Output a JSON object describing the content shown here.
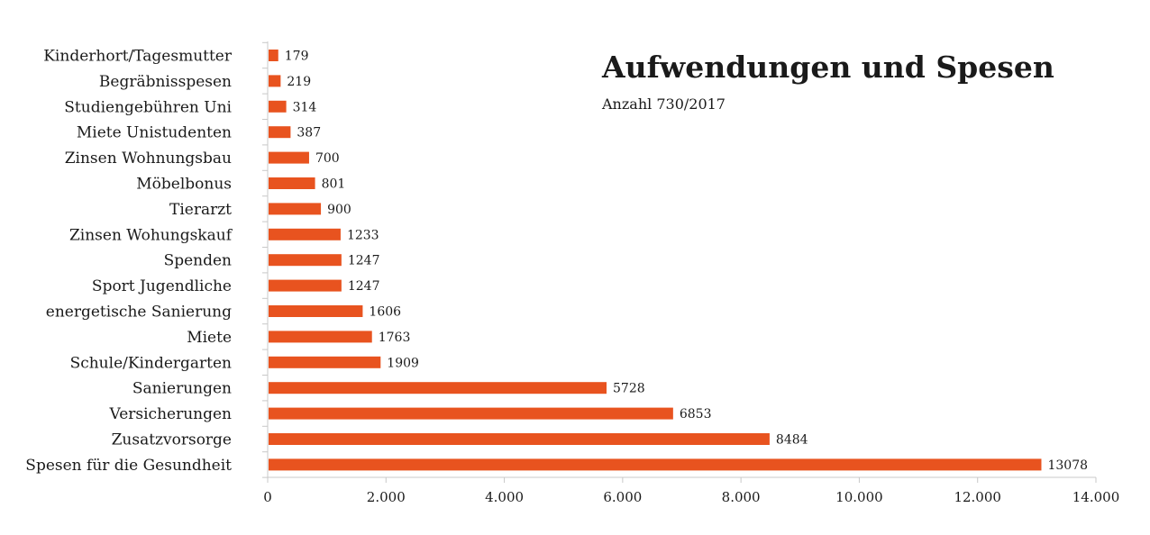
{
  "chart_data": {
    "type": "bar",
    "orientation": "horizontal",
    "title": "Aufwendungen und Spesen",
    "subtitle": "Anzahl 730/2017",
    "categories": [
      "Kinderhort/Tagesmutter",
      "Begräbnisspesen",
      "Studiengebühren Uni",
      "Miete Unistudenten",
      "Zinsen Wohnungsbau",
      "Möbelbonus",
      "Tierarzt",
      "Zinsen Wohungskauf",
      "Spenden",
      "Sport Jugendliche",
      "energetische Sanierung",
      "Miete",
      "Schule/Kindergarten",
      "Sanierungen",
      "Versicherungen",
      "Zusatzvorsorge",
      "Spesen für die Gesundheit"
    ],
    "values": [
      179,
      219,
      314,
      387,
      700,
      801,
      900,
      1233,
      1247,
      1247,
      1606,
      1763,
      1909,
      5728,
      6853,
      8484,
      13078
    ],
    "xlim": [
      0,
      14000
    ],
    "xticks": [
      0,
      2000,
      4000,
      6000,
      8000,
      10000,
      12000,
      14000
    ],
    "xtick_labels": [
      "0",
      "2.000",
      "4.000",
      "6.000",
      "8.000",
      "10.000",
      "12.000",
      "14.000"
    ],
    "grid": false,
    "bar_color": "#e8531f",
    "axis_color": "#c8c8c8"
  }
}
